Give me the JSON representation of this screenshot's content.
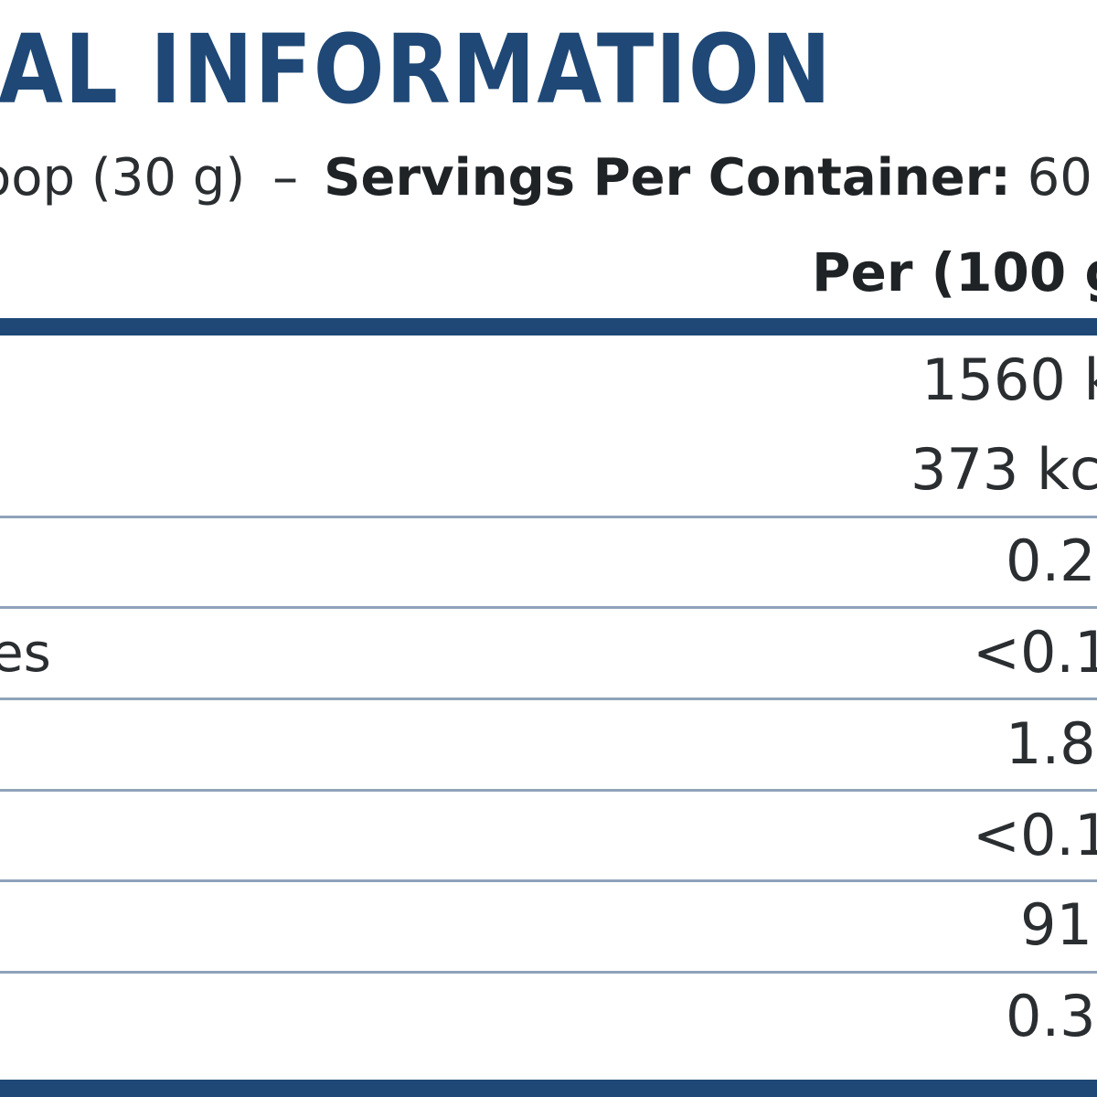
{
  "title": "AL INFORMATION",
  "serving": {
    "size": "oop (30 g)",
    "separator": "–",
    "servings_label": "Servings Per Container:",
    "servings_value": "60"
  },
  "column_header": "Per (100 g",
  "rows": [
    {
      "label": "",
      "value": "1560 k"
    },
    {
      "label": "",
      "value": "373 kc"
    },
    {
      "label": "",
      "value": "0.2"
    },
    {
      "label": "es",
      "value": "<0.1"
    },
    {
      "label": "",
      "value": "1.8"
    },
    {
      "label": "",
      "value": "<0.1"
    },
    {
      "label": "",
      "value": "91"
    },
    {
      "label": "",
      "value": "0.3"
    }
  ],
  "colors": {
    "accent": "#1f4876",
    "divider": "#8fa3ba",
    "text": "#2a2e31"
  }
}
